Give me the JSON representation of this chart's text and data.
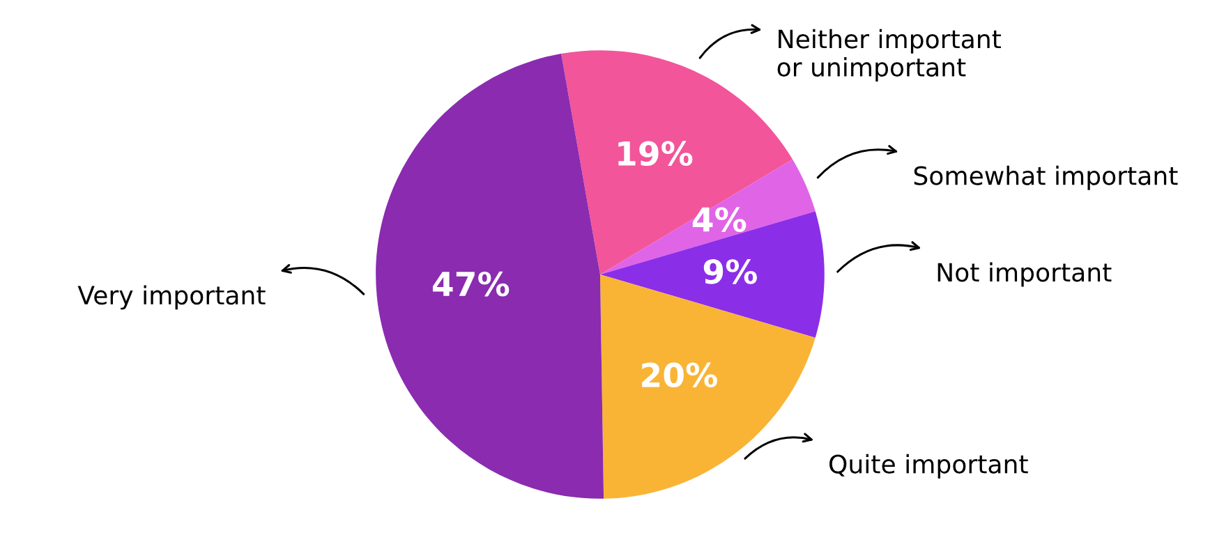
{
  "chart_data": {
    "type": "pie",
    "categories": [
      "Neither important\nor unimportant",
      "Somewhat important",
      "Not important",
      "Quite important",
      "Very important"
    ],
    "values": [
      19,
      4,
      9,
      20,
      47
    ],
    "value_labels": [
      "19%",
      "4%",
      "9%",
      "20%",
      "47%"
    ],
    "colors": [
      "#f2559a",
      "#e064e6",
      "#8b2ee8",
      "#f9b436",
      "#8a2bb0"
    ],
    "legend": false
  }
}
